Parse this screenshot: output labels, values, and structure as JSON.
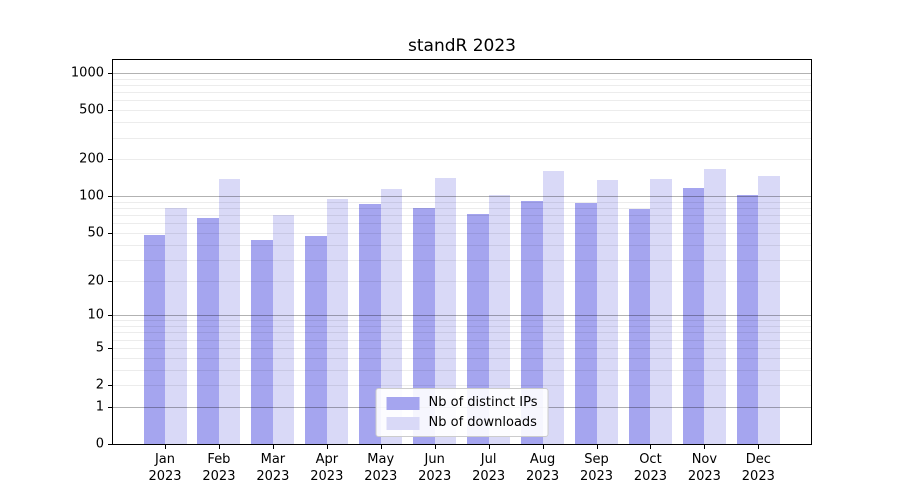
{
  "chart_data": {
    "type": "bar",
    "title": "standR 2023",
    "xlabel": "",
    "ylabel": "",
    "categories": [
      "Jan 2023",
      "Feb 2023",
      "Mar 2023",
      "Apr 2023",
      "May 2023",
      "Jun 2023",
      "Jul 2023",
      "Aug 2023",
      "Sep 2023",
      "Oct 2023",
      "Nov 2023",
      "Dec 2023"
    ],
    "series": [
      {
        "name": "Nb of distinct IPs",
        "color": "#a5a5ef",
        "values": [
          48,
          66,
          44,
          47,
          86,
          80,
          72,
          92,
          88,
          78,
          116,
          102
        ]
      },
      {
        "name": "Nb of downloads",
        "color": "#d9d9f7",
        "values": [
          80,
          137,
          70,
          95,
          115,
          140,
          102,
          160,
          136,
          139,
          168,
          145
        ]
      }
    ],
    "yscale": "log1p",
    "ylim": [
      0,
      1275
    ],
    "y_ticks": [
      0,
      1,
      2,
      5,
      10,
      20,
      50,
      100,
      200,
      500,
      1000
    ],
    "y_major_grid_values": [
      1,
      10,
      100,
      1000
    ],
    "grid": "both",
    "legend_position": "lower center"
  },
  "colors": {
    "background": "#ffffff",
    "axis": "#000000",
    "bar_distinct_ips": "#a5a5ef",
    "bar_downloads": "#d9d9f7"
  }
}
